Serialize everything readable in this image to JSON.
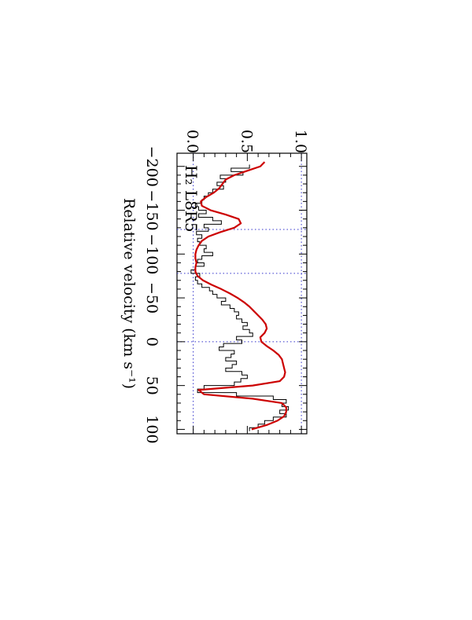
{
  "chart_data": {
    "type": "line",
    "orientation": "rotated-90-clockwise",
    "xlabel": "Relative velocity (km s⁻¹)",
    "ylabel": "",
    "xlim": [
      -215,
      105
    ],
    "ylim": [
      -0.15,
      1.05
    ],
    "xticks": [
      -200,
      -150,
      -100,
      -50,
      0,
      50,
      100
    ],
    "xtick_labels": [
      "−200",
      "−150",
      "−100",
      "−50",
      "0",
      "50",
      "100"
    ],
    "yticks": [
      0.0,
      0.5,
      1.0
    ],
    "ytick_labels": [
      "0.0",
      "0.5",
      "1.0"
    ],
    "annotation": "H₂ L8R5",
    "reference_lines": {
      "horizontal": [
        0.0,
        1.0
      ],
      "vertical": [
        -128,
        -78,
        0
      ]
    },
    "colors": {
      "model": "#cc0000",
      "data": "#000000",
      "reference": "#3333cc"
    },
    "series": [
      {
        "style": "step",
        "x": [
          -200,
          -196,
          -192,
          -188,
          -184,
          -180,
          -176,
          -172,
          -168,
          -164,
          -160,
          -156,
          -152,
          -148,
          -144,
          -140,
          -136,
          -132,
          -128,
          -124,
          -120,
          -116,
          -112,
          -108,
          -104,
          -100,
          -96,
          -92,
          -88,
          -84,
          -80,
          -76,
          -72,
          -68,
          -64,
          -60,
          -56,
          -52,
          -48,
          -44,
          -40,
          -36,
          -32,
          -28,
          -24,
          -20,
          -16,
          -12,
          -8,
          -4,
          0,
          4,
          8,
          12,
          16,
          20,
          24,
          28,
          32,
          36,
          40,
          44,
          48,
          52,
          56,
          60,
          64,
          68,
          72,
          76,
          80,
          84,
          88,
          92,
          96,
          100
        ],
        "values": [
          0.52,
          0.35,
          0.46,
          0.25,
          0.3,
          0.22,
          0.28,
          0.18,
          0.14,
          0.1,
          0.08,
          0.02,
          0.05,
          0.12,
          0.05,
          0.18,
          0.26,
          0.1,
          0.14,
          0.03,
          0.08,
          0.04,
          0.06,
          0.12,
          0.1,
          0.18,
          0.08,
          0.04,
          0.1,
          0.02,
          -0.02,
          0.06,
          0.02,
          0.04,
          0.08,
          0.15,
          0.18,
          0.22,
          0.3,
          0.26,
          0.34,
          0.38,
          0.42,
          0.4,
          0.45,
          0.5,
          0.46,
          0.52,
          0.55,
          0.4,
          0.45,
          0.28,
          0.24,
          0.38,
          0.35,
          0.3,
          0.4,
          0.36,
          0.3,
          0.45,
          0.5,
          0.44,
          0.38,
          0.1,
          0.04,
          0.4,
          0.74,
          0.86,
          0.82,
          0.88,
          0.8,
          0.86,
          0.74,
          0.66,
          0.6,
          0.52
        ]
      },
      {
        "style": "line",
        "x": [
          -205,
          -200,
          -195,
          -190,
          -185,
          -180,
          -175,
          -170,
          -165,
          -160,
          -155,
          -150,
          -145,
          -140,
          -135,
          -130,
          -125,
          -120,
          -115,
          -110,
          -105,
          -100,
          -95,
          -90,
          -85,
          -80,
          -75,
          -70,
          -65,
          -60,
          -55,
          -50,
          -45,
          -40,
          -35,
          -30,
          -25,
          -20,
          -15,
          -10,
          -5,
          0,
          5,
          10,
          15,
          20,
          25,
          30,
          35,
          40,
          45,
          50,
          55,
          60,
          65,
          70,
          75,
          80,
          85,
          90,
          95,
          100
        ],
        "values": [
          0.66,
          0.62,
          0.5,
          0.38,
          0.3,
          0.27,
          0.24,
          0.19,
          0.12,
          0.07,
          0.08,
          0.16,
          0.3,
          0.42,
          0.44,
          0.38,
          0.25,
          0.14,
          0.08,
          0.05,
          0.03,
          0.02,
          0.02,
          0.03,
          0.02,
          0.02,
          0.04,
          0.09,
          0.17,
          0.26,
          0.34,
          0.41,
          0.47,
          0.52,
          0.56,
          0.6,
          0.64,
          0.67,
          0.68,
          0.66,
          0.62,
          0.63,
          0.68,
          0.74,
          0.79,
          0.82,
          0.83,
          0.84,
          0.85,
          0.84,
          0.8,
          0.55,
          0.05,
          0.1,
          0.55,
          0.82,
          0.86,
          0.86,
          0.84,
          0.78,
          0.68,
          0.54
        ]
      }
    ]
  }
}
